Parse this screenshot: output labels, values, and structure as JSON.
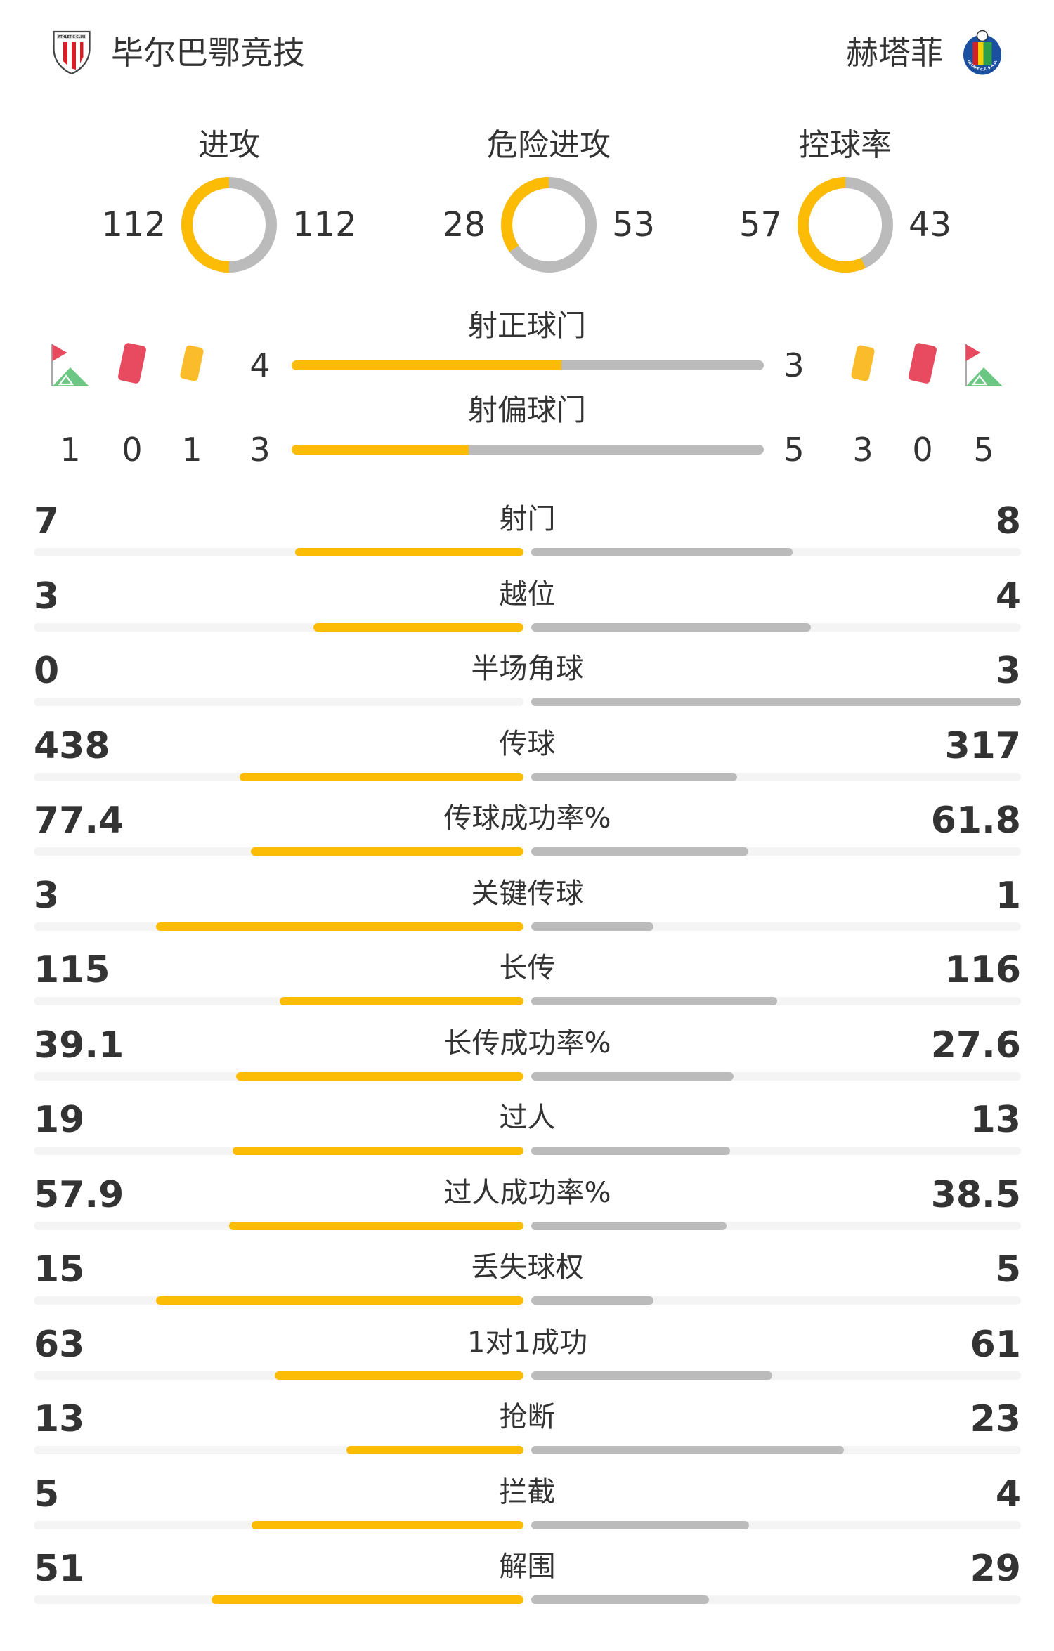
{
  "colors": {
    "home": "#fcbc05",
    "away": "#bbbbbb",
    "track": "#f4f4f4",
    "red_card": "#e84a5f",
    "yellow_card": "#fbbc2c"
  },
  "header": {
    "home_team": "毕尔巴鄂竞技",
    "away_team": "赫塔菲",
    "home_logo_text": "ATHLETIC CLUB",
    "away_logo_text": "GETAFE C.F. S.A.D."
  },
  "donuts": [
    {
      "title": "进攻",
      "home": "112",
      "away": "112",
      "home_share": 0.5
    },
    {
      "title": "危险进攻",
      "home": "28",
      "away": "53",
      "home_share": 0.346
    },
    {
      "title": "控球率",
      "home": "57",
      "away": "43",
      "home_share": 0.57
    }
  ],
  "shots_on_target": {
    "label": "射正球门",
    "home": "4",
    "away": "3",
    "home_share": 0.571
  },
  "shots_off_target": {
    "label": "射偏球门",
    "home": "3",
    "away": "5",
    "home_share": 0.375
  },
  "home_counts": {
    "corners": "1",
    "red_cards": "0",
    "yellow_cards": "1"
  },
  "away_counts": {
    "yellow_cards": "3",
    "red_cards": "0",
    "corners": "5"
  },
  "icons": {
    "corner": "corner-flag-icon",
    "red": "red-card-icon",
    "yellow": "yellow-card-icon"
  },
  "stats": [
    {
      "label": "射门",
      "home": "7",
      "away": "8"
    },
    {
      "label": "越位",
      "home": "3",
      "away": "4"
    },
    {
      "label": "半场角球",
      "home": "0",
      "away": "3"
    },
    {
      "label": "传球",
      "home": "438",
      "away": "317"
    },
    {
      "label": "传球成功率%",
      "home": "77.4",
      "away": "61.8"
    },
    {
      "label": "关键传球",
      "home": "3",
      "away": "1"
    },
    {
      "label": "长传",
      "home": "115",
      "away": "116"
    },
    {
      "label": "长传成功率%",
      "home": "39.1",
      "away": "27.6"
    },
    {
      "label": "过人",
      "home": "19",
      "away": "13"
    },
    {
      "label": "过人成功率%",
      "home": "57.9",
      "away": "38.5"
    },
    {
      "label": "丢失球权",
      "home": "15",
      "away": "5"
    },
    {
      "label": "1对1成功",
      "home": "63",
      "away": "61"
    },
    {
      "label": "抢断",
      "home": "13",
      "away": "23"
    },
    {
      "label": "拦截",
      "home": "5",
      "away": "4"
    },
    {
      "label": "解围",
      "home": "51",
      "away": "29"
    }
  ]
}
